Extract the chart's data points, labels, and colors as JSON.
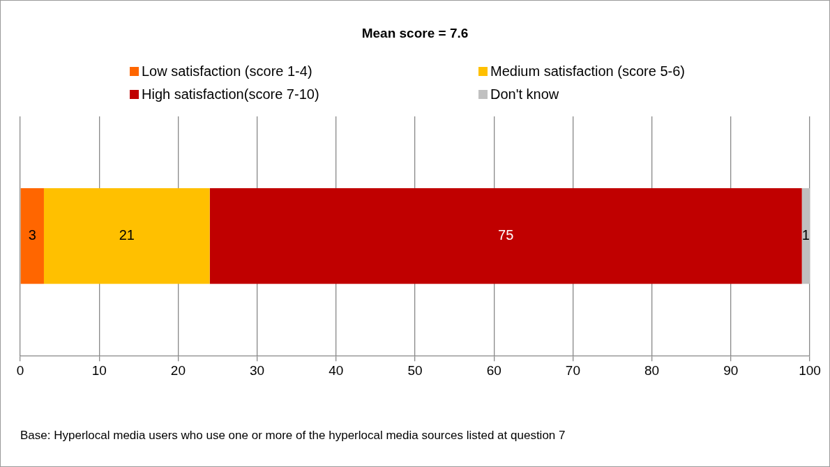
{
  "chart_data": {
    "type": "bar",
    "orientation": "horizontal",
    "stacked": true,
    "title": "Mean score = 7.6",
    "categories": [
      null
    ],
    "series": [
      {
        "name": "Low satisfaction (score 1-4)",
        "color": "#ff6600",
        "values": [
          3
        ]
      },
      {
        "name": "Medium satisfaction (score 5-6)",
        "color": "#ffc000",
        "values": [
          21
        ]
      },
      {
        "name": "High satisfaction(score 7-10)",
        "color": "#c00000",
        "values": [
          75
        ]
      },
      {
        "name": "Don't know",
        "color": "#c0c0c0",
        "values": [
          1
        ]
      }
    ],
    "xlim": [
      0,
      100
    ],
    "xticks": [
      0,
      10,
      20,
      30,
      40,
      50,
      60,
      70,
      80,
      90,
      100
    ],
    "grid": "x",
    "legend": "top",
    "data_labels": true,
    "annotations": [
      "Base: Hyperlocal media users who use one or more of the hyperlocal media sources listed at question 7"
    ]
  }
}
